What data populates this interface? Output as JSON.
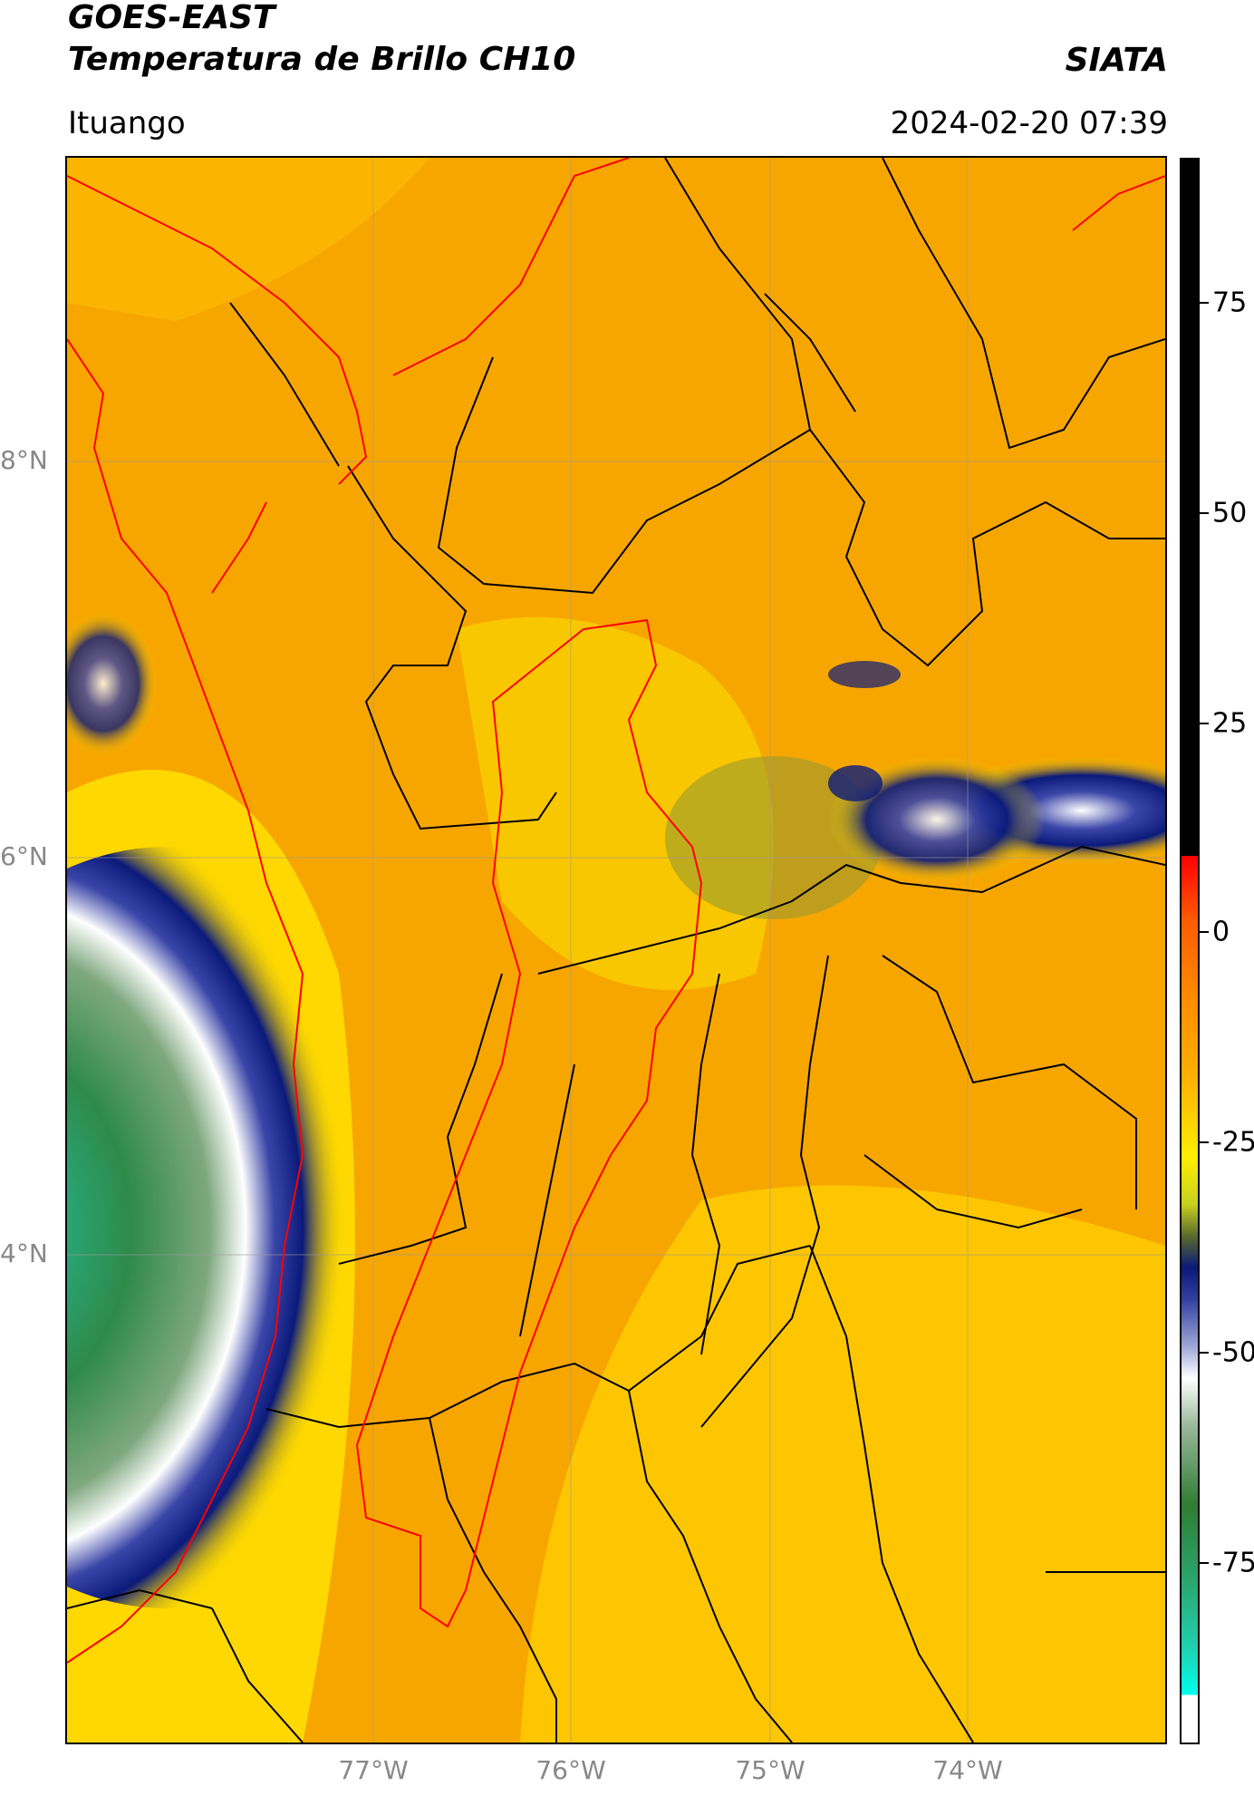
{
  "header": {
    "title_line1": "GOES-EAST",
    "title_line2": "Temperatura de Brillo CH10",
    "brand": "SIATA",
    "location": "Ituango",
    "timestamp": "2024-02-20 07:39"
  },
  "map": {
    "lat_labels": [
      "8°N",
      "6°N",
      "4°N"
    ],
    "lon_labels": [
      "77°W",
      "76°W",
      "75°W",
      "74°W"
    ]
  },
  "colorbar": {
    "ticks": [
      "75",
      "50",
      "25",
      "0",
      "-25",
      "-50",
      "-75"
    ],
    "colors": [
      "#000000",
      "#ff0000",
      "#ff8c00",
      "#ffee00",
      "#0a1a7a",
      "#ffffff",
      "#2e7d32",
      "#20d0b0",
      "#00ffee"
    ]
  }
}
